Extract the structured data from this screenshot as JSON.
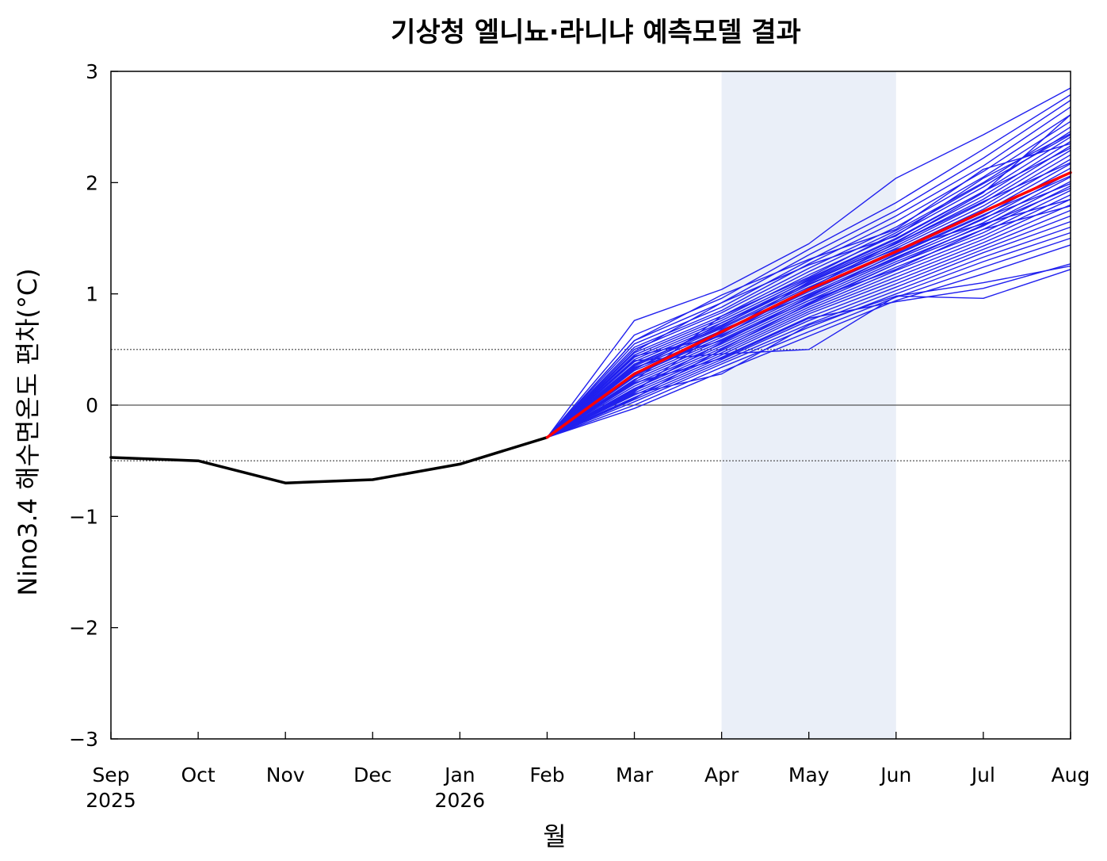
{
  "chart_data": {
    "type": "line",
    "title": "기상청 엘니뇨·라니냐 예측모델 결과",
    "xlabel": "월",
    "ylabel": "Nino3.4 해수면온도 편차(°C)",
    "ylim": [
      -3,
      3
    ],
    "yticks": [
      3,
      2,
      1,
      0,
      -1,
      -2,
      -3
    ],
    "ytick_labels": [
      "3",
      "2",
      "1",
      "0",
      "−1",
      "−2",
      "−3"
    ],
    "categories": [
      "Sep",
      "Oct",
      "Nov",
      "Dec",
      "Jan",
      "Feb",
      "Mar",
      "Apr",
      "May",
      "Jun",
      "Jul",
      "Aug"
    ],
    "year_labels": [
      "2025",
      "",
      "",
      "",
      "2026",
      "",
      "",
      "",
      "",
      "",
      "",
      ""
    ],
    "grid": false,
    "reference_lines": [
      {
        "y": 0,
        "style": "solid",
        "color": "#555555"
      },
      {
        "y": 0.5,
        "style": "dotted",
        "color": "#444444"
      },
      {
        "y": -0.5,
        "style": "dotted",
        "color": "#444444"
      }
    ],
    "highlight_band": {
      "from": "Apr",
      "to": "Jun",
      "color": "#eaeff8"
    },
    "observed": {
      "color": "#000000",
      "months": [
        "Sep",
        "Oct",
        "Nov",
        "Dec",
        "Jan",
        "Feb"
      ],
      "values": [
        -0.47,
        -0.5,
        -0.7,
        -0.67,
        -0.53,
        -0.29
      ]
    },
    "ensemble_mean": {
      "color": "#ff0000",
      "months": [
        "Feb",
        "Mar",
        "Apr",
        "May",
        "Jun",
        "Jul",
        "Aug"
      ],
      "values": [
        -0.29,
        0.28,
        0.66,
        1.04,
        1.38,
        1.74,
        2.09
      ]
    },
    "ensemble_members": {
      "color": "#2020ee",
      "months": [
        "Feb",
        "Mar",
        "Apr",
        "May",
        "Jun",
        "Jul",
        "Aug"
      ],
      "series": [
        [
          -0.29,
          0.76,
          1.04,
          1.45,
          2.04,
          2.43,
          2.85
        ],
        [
          -0.29,
          0.63,
          0.96,
          1.4,
          1.82,
          2.3,
          2.79
        ],
        [
          -0.29,
          0.58,
          0.92,
          1.35,
          1.75,
          2.22,
          2.74
        ],
        [
          -0.29,
          0.55,
          0.88,
          1.3,
          1.7,
          2.15,
          2.68
        ],
        [
          -0.29,
          0.52,
          0.85,
          1.27,
          1.65,
          2.1,
          2.61
        ],
        [
          -0.29,
          0.5,
          0.83,
          1.23,
          1.6,
          2.05,
          2.55
        ],
        [
          -0.29,
          0.47,
          0.8,
          1.2,
          1.57,
          2.0,
          2.5
        ],
        [
          -0.29,
          0.45,
          0.78,
          1.17,
          1.53,
          1.96,
          2.46
        ],
        [
          -0.29,
          0.43,
          0.76,
          1.14,
          1.5,
          1.92,
          2.41
        ],
        [
          -0.29,
          0.41,
          0.74,
          1.12,
          1.47,
          1.88,
          2.37
        ],
        [
          -0.29,
          0.39,
          0.72,
          1.1,
          1.45,
          1.85,
          2.33
        ],
        [
          -0.29,
          0.37,
          0.7,
          1.08,
          1.43,
          1.82,
          2.29
        ],
        [
          -0.29,
          0.35,
          0.69,
          1.06,
          1.41,
          1.79,
          2.25
        ],
        [
          -0.29,
          0.33,
          0.67,
          1.04,
          1.39,
          1.76,
          2.21
        ],
        [
          -0.29,
          0.31,
          0.65,
          1.02,
          1.37,
          1.73,
          2.17
        ],
        [
          -0.29,
          0.29,
          0.63,
          1.0,
          1.35,
          1.7,
          2.13
        ],
        [
          -0.29,
          0.27,
          0.61,
          0.98,
          1.33,
          1.67,
          2.09
        ],
        [
          -0.29,
          0.25,
          0.59,
          0.96,
          1.31,
          1.64,
          2.05
        ],
        [
          -0.29,
          0.23,
          0.57,
          0.94,
          1.29,
          1.61,
          2.01
        ],
        [
          -0.29,
          0.21,
          0.55,
          0.92,
          1.27,
          1.58,
          1.97
        ],
        [
          -0.29,
          0.19,
          0.53,
          0.9,
          1.24,
          1.55,
          1.93
        ],
        [
          -0.29,
          0.17,
          0.51,
          0.88,
          1.21,
          1.52,
          1.89
        ],
        [
          -0.29,
          0.15,
          0.49,
          0.86,
          1.18,
          1.49,
          1.85
        ],
        [
          -0.29,
          0.13,
          0.47,
          0.84,
          1.15,
          1.46,
          1.8
        ],
        [
          -0.29,
          0.11,
          0.45,
          0.82,
          1.12,
          1.43,
          1.75
        ],
        [
          -0.29,
          0.09,
          0.43,
          0.79,
          1.09,
          1.4,
          1.7
        ],
        [
          -0.29,
          0.07,
          0.41,
          0.76,
          1.06,
          1.37,
          1.65
        ],
        [
          -0.29,
          0.05,
          0.39,
          0.73,
          1.03,
          1.33,
          1.6
        ],
        [
          -0.29,
          0.03,
          0.37,
          0.7,
          1.0,
          1.29,
          1.55
        ],
        [
          -0.29,
          0.0,
          0.34,
          0.66,
          0.97,
          1.24,
          1.5
        ],
        [
          -0.29,
          -0.03,
          0.3,
          0.62,
          0.94,
          1.18,
          1.44
        ],
        [
          -0.29,
          0.4,
          0.46,
          0.5,
          0.98,
          1.1,
          1.25
        ],
        [
          -0.29,
          0.1,
          0.28,
          0.72,
          0.98,
          0.96,
          1.22
        ],
        [
          -0.29,
          0.2,
          0.42,
          0.78,
          0.93,
          1.05,
          1.27
        ],
        [
          -0.29,
          0.58,
          0.99,
          1.31,
          1.58,
          2.12,
          2.35
        ],
        [
          -0.29,
          0.48,
          0.92,
          1.26,
          1.52,
          2.04,
          2.44
        ],
        [
          -0.29,
          0.36,
          0.71,
          1.13,
          1.49,
          1.92,
          2.31
        ],
        [
          -0.29,
          0.26,
          0.64,
          1.11,
          1.45,
          1.83,
          2.18
        ],
        [
          -0.29,
          0.14,
          0.56,
          0.97,
          1.36,
          1.71,
          2.06
        ],
        [
          -0.29,
          0.06,
          0.5,
          0.91,
          1.27,
          1.62,
          1.95
        ],
        [
          -0.29,
          0.32,
          0.74,
          1.09,
          1.4,
          1.63,
          1.85
        ],
        [
          -0.29,
          0.44,
          0.62,
          1.05,
          1.46,
          1.91,
          2.61
        ],
        [
          -0.29,
          0.22,
          0.8,
          1.15,
          1.55,
          1.99,
          2.43
        ],
        [
          -0.29,
          0.12,
          0.68,
          0.99,
          1.32,
          1.68,
          1.99
        ],
        [
          -0.29,
          0.34,
          0.58,
          0.94,
          1.22,
          1.58,
          1.79
        ]
      ]
    }
  }
}
